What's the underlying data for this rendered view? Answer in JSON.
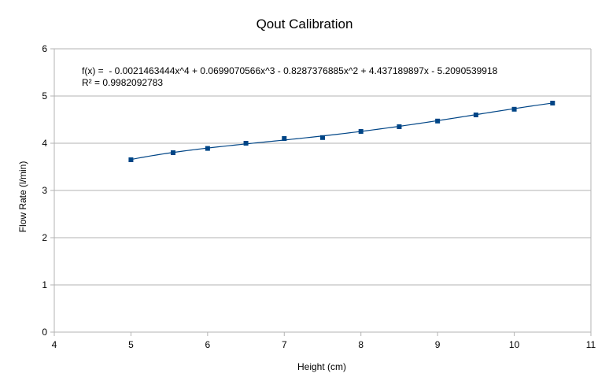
{
  "chart_data": {
    "type": "scatter",
    "title": "Qout Calibration",
    "xlabel": "Height (cm)",
    "ylabel": "Flow Rate (l/min)",
    "xlim": [
      4,
      11
    ],
    "ylim": [
      0,
      6
    ],
    "xticks": [
      4,
      5,
      6,
      7,
      8,
      9,
      10,
      11
    ],
    "yticks": [
      0,
      1,
      2,
      3,
      4,
      5,
      6
    ],
    "grid": "horizontal",
    "colors": {
      "marker": "#004586",
      "trendline": "#004586",
      "grid": "#b3b3b3",
      "axis": "#b3b3b3"
    },
    "series": [
      {
        "x": [
          5,
          5.55,
          6,
          6.5,
          7,
          7.5,
          8,
          8.5,
          9,
          9.5,
          10,
          10.5
        ],
        "y": [
          3.65,
          3.8,
          3.89,
          4.0,
          4.1,
          4.12,
          4.25,
          4.35,
          4.47,
          4.6,
          4.72,
          4.85
        ]
      }
    ],
    "trendline": {
      "type": "polynomial",
      "degree": 4,
      "coefficients": [
        -0.0021463444,
        0.0699070566,
        -0.8287376885,
        4.437189897,
        -5.2090539918
      ],
      "x_range": [
        5,
        10.5
      ],
      "equation_text": "f(x) =  - 0.0021463444x^4 + 0.0699070566x^3 - 0.8287376885x^2 + 4.437189897x - 5.2090539918",
      "r2_text": "R² = 0.9982092783"
    }
  }
}
